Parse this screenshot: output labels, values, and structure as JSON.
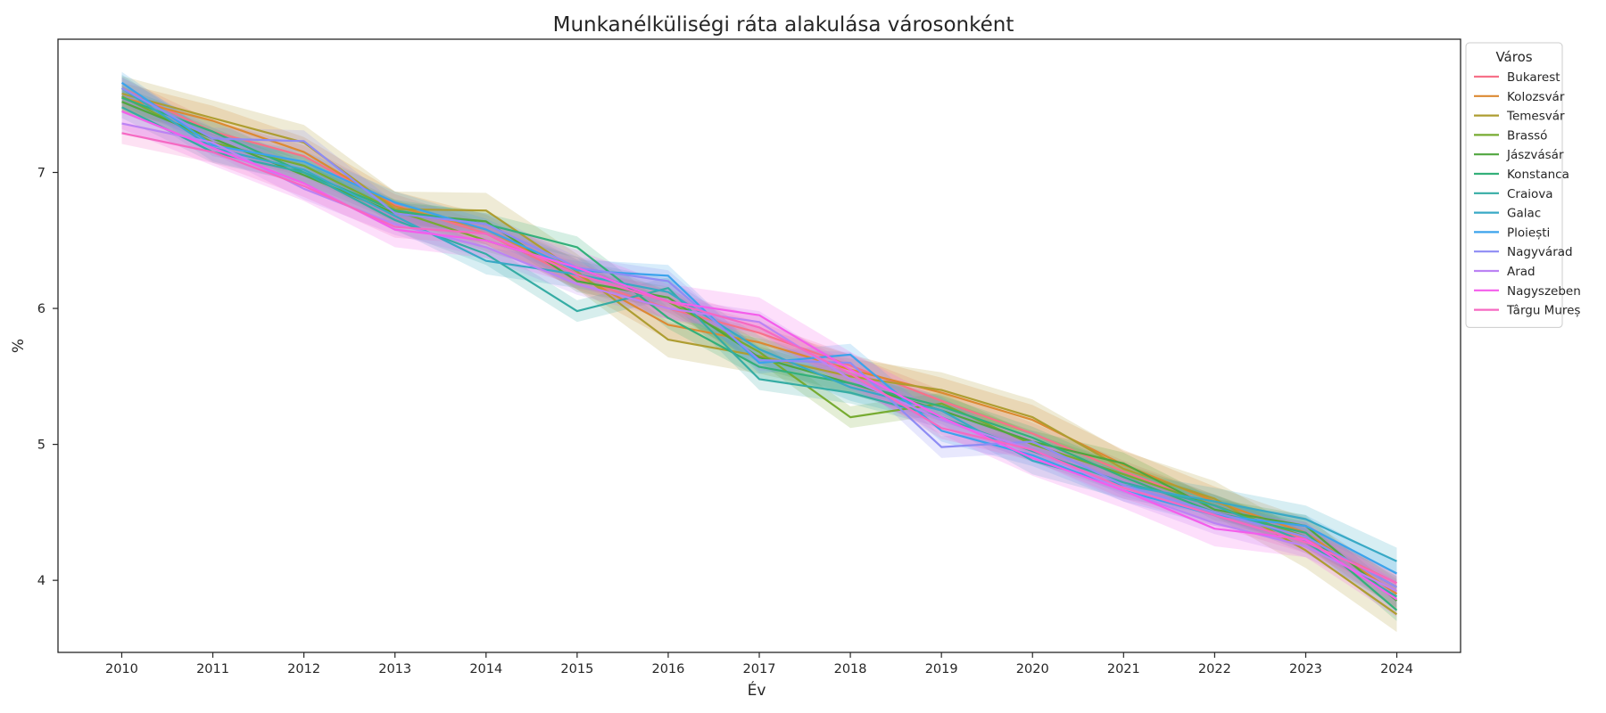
{
  "chart_data": {
    "type": "line",
    "title": "Munkanélküliségi ráta alakulása városonként",
    "xlabel": "Év",
    "ylabel": "%",
    "x": [
      2010,
      2011,
      2012,
      2013,
      2014,
      2015,
      2016,
      2017,
      2018,
      2019,
      2020,
      2021,
      2022,
      2023,
      2024
    ],
    "xlim": [
      2009.3,
      2024.7
    ],
    "ylim": [
      3.47,
      7.98
    ],
    "yticks": [
      4,
      5,
      6,
      7
    ],
    "grid": false,
    "legend": {
      "title": "Város",
      "placement": "upper-right-outside"
    },
    "series": [
      {
        "name": "Bukarest",
        "color": "#f77189",
        "values": [
          7.62,
          7.3,
          7.12,
          6.76,
          6.55,
          6.22,
          6.0,
          5.82,
          5.58,
          5.32,
          5.08,
          4.8,
          4.55,
          4.3,
          3.98
        ],
        "ci": 0.08
      },
      {
        "name": "Kolozsvár",
        "color": "#dc8932",
        "values": [
          7.55,
          7.38,
          7.15,
          6.75,
          6.58,
          6.25,
          5.88,
          5.75,
          5.55,
          5.38,
          5.18,
          4.85,
          4.58,
          4.35,
          3.9
        ],
        "ci": 0.11
      },
      {
        "name": "Temesvár",
        "color": "#ae9d31",
        "values": [
          7.58,
          7.4,
          7.22,
          6.73,
          6.72,
          6.27,
          5.77,
          5.65,
          5.5,
          5.4,
          5.2,
          4.82,
          4.6,
          4.22,
          3.75
        ],
        "ci": 0.13
      },
      {
        "name": "Brassó",
        "color": "#77ab31",
        "values": [
          7.56,
          7.22,
          7.05,
          6.72,
          6.5,
          6.3,
          6.05,
          5.68,
          5.2,
          5.3,
          5.0,
          4.78,
          4.55,
          4.32,
          3.95
        ],
        "ci": 0.08
      },
      {
        "name": "Jászvásár",
        "color": "#50a63e",
        "values": [
          7.52,
          7.25,
          6.98,
          6.7,
          6.64,
          6.2,
          6.08,
          5.64,
          5.45,
          5.25,
          5.02,
          4.86,
          4.52,
          4.4,
          3.85
        ],
        "ci": 0.08
      },
      {
        "name": "Konstanca",
        "color": "#33b07a",
        "values": [
          7.55,
          7.3,
          7.0,
          6.72,
          6.62,
          6.45,
          5.93,
          5.57,
          5.45,
          5.28,
          5.05,
          4.76,
          4.5,
          4.35,
          3.78
        ],
        "ci": 0.08
      },
      {
        "name": "Craiova",
        "color": "#35aca4",
        "values": [
          7.48,
          7.15,
          7.0,
          6.65,
          6.4,
          5.98,
          6.15,
          5.48,
          5.38,
          5.2,
          4.95,
          4.72,
          4.55,
          4.28,
          3.88
        ],
        "ci": 0.08
      },
      {
        "name": "Galac",
        "color": "#38a9c5",
        "values": [
          7.62,
          7.18,
          7.02,
          6.68,
          6.35,
          6.25,
          6.12,
          5.7,
          5.42,
          5.25,
          4.88,
          4.7,
          4.58,
          4.45,
          4.14
        ],
        "ci": 0.1
      },
      {
        "name": "Ploiești",
        "color": "#3ba3ec",
        "values": [
          7.66,
          7.2,
          7.08,
          6.78,
          6.58,
          6.28,
          6.24,
          5.6,
          5.66,
          5.1,
          4.92,
          4.66,
          4.48,
          4.4,
          4.05
        ],
        "ci": 0.08
      },
      {
        "name": "Nagyvárad",
        "color": "#8e8cf4",
        "values": [
          7.62,
          7.25,
          7.23,
          6.7,
          6.62,
          6.3,
          6.2,
          5.62,
          5.6,
          4.98,
          5.02,
          4.7,
          4.5,
          4.32,
          3.95
        ],
        "ci": 0.08
      },
      {
        "name": "Arad",
        "color": "#bb83f4",
        "values": [
          7.36,
          7.22,
          6.88,
          6.62,
          6.45,
          6.18,
          6.0,
          5.9,
          5.48,
          5.18,
          4.96,
          4.66,
          4.42,
          4.25,
          3.92
        ],
        "ci": 0.08
      },
      {
        "name": "Nagyszeben",
        "color": "#f45deb",
        "values": [
          7.45,
          7.18,
          6.92,
          6.58,
          6.5,
          6.3,
          6.05,
          5.95,
          5.55,
          5.2,
          4.9,
          4.66,
          4.38,
          4.3,
          3.86
        ],
        "ci": 0.13
      },
      {
        "name": "Târgu Mureș",
        "color": "#f668c2",
        "values": [
          7.29,
          7.15,
          6.9,
          6.6,
          6.55,
          6.25,
          6.05,
          5.86,
          5.52,
          5.12,
          4.96,
          4.68,
          4.48,
          4.28,
          3.98
        ],
        "ci": 0.08
      }
    ]
  }
}
